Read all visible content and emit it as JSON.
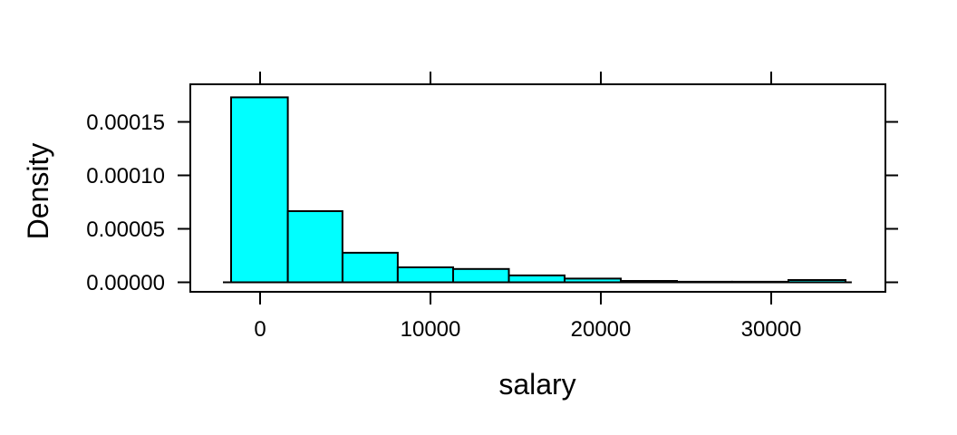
{
  "figure": {
    "background": "#FFFFFF"
  },
  "chart_data": {
    "type": "bar",
    "subtype": "histogram",
    "title": "",
    "xlabel": "salary",
    "ylabel": "Density",
    "grid": false,
    "legend": null,
    "ticks_on_all_sides": true,
    "bar_fill": "#00FFFF",
    "bar_stroke": "#000000",
    "axis_color": "#000000",
    "text_color": "#000000",
    "xlim": [
      -4096,
      36702
    ],
    "ylim": [
      -8.9e-06,
      0.0001852
    ],
    "bin_edges": [
      -1700,
      1630,
      4840,
      8080,
      11330,
      14600,
      17870,
      21170,
      24470,
      27700,
      31010,
      34360
    ],
    "densities": [
      0.000173,
      6.65e-05,
      2.76e-05,
      1.4e-05,
      1.25e-05,
      6.4e-06,
      3.5e-06,
      1.3e-06,
      5e-07,
      5e-07,
      2.1e-06
    ],
    "baseline_x": [
      -2180,
      34730
    ],
    "x_ticks": [
      {
        "value": 0,
        "label": "0"
      },
      {
        "value": 10000,
        "label": "10000"
      },
      {
        "value": 20000,
        "label": "20000"
      },
      {
        "value": 30000,
        "label": "30000"
      }
    ],
    "y_ticks": [
      {
        "value": 0,
        "label": "0.00000"
      },
      {
        "value": 5e-05,
        "label": "0.00005"
      },
      {
        "value": 0.0001,
        "label": "0.00010"
      },
      {
        "value": 0.00015,
        "label": "0.00015"
      }
    ]
  }
}
